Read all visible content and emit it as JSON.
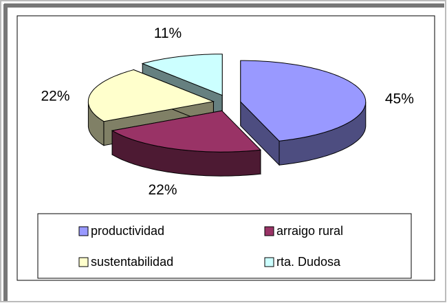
{
  "chart_data": {
    "type": "pie3d",
    "categories": [
      "productividad",
      "arraigo rural",
      "sustentabilidad",
      "rta. Dudosa"
    ],
    "values": [
      45,
      22,
      22,
      11
    ],
    "value_labels": [
      "45%",
      "22%",
      "22%",
      "11%"
    ],
    "colors": [
      "#9999ff",
      "#993366",
      "#ffffcc",
      "#ccffff"
    ],
    "legend": "bottom"
  }
}
